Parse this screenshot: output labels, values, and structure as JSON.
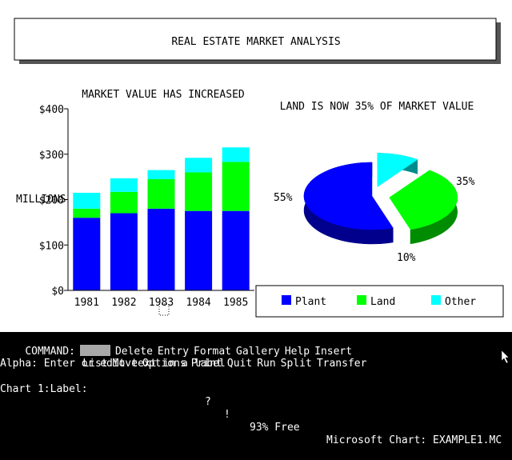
{
  "title_box": {
    "title": "REAL ESTATE MARKET ANALYSIS"
  },
  "chart_data": [
    {
      "type": "bar",
      "title": "MARKET VALUE HAS INCREASED",
      "ylabel": "MILLIONS",
      "categories": [
        "1981",
        "1982",
        "1983",
        "1984",
        "1985"
      ],
      "y_tick_labels": [
        "$0",
        "$100",
        "$200",
        "$300",
        "$400"
      ],
      "ylim": [
        0,
        400
      ],
      "stacked": true,
      "series": [
        {
          "name": "Plant",
          "color": "#0000ff",
          "values": [
            160,
            170,
            180,
            175,
            175
          ]
        },
        {
          "name": "Land",
          "color": "#00ff00",
          "values": [
            20,
            47,
            65,
            85,
            108
          ]
        },
        {
          "name": "Other",
          "color": "#00ffff",
          "values": [
            35,
            30,
            20,
            32,
            32
          ]
        }
      ]
    },
    {
      "type": "pie",
      "title": "LAND IS NOW 35% OF MARKET VALUE",
      "three_d": true,
      "slices": [
        {
          "name": "Plant",
          "color": "#0000ff",
          "value": 55,
          "label": "55%"
        },
        {
          "name": "Land",
          "color": "#00ff00",
          "value": 35,
          "label": "35%",
          "exploded": true
        },
        {
          "name": "Other",
          "color": "#00ffff",
          "value": 10,
          "label": "10%",
          "exploded": true
        }
      ]
    }
  ],
  "legend": {
    "items": [
      {
        "label": "Plant",
        "color": "#0000ff"
      },
      {
        "label": "Land",
        "color": "#00ff00"
      },
      {
        "label": "Other",
        "color": "#00ffff"
      }
    ]
  },
  "menu": {
    "command_label": "COMMAND:",
    "row1": [
      "Delete",
      "Entry",
      "Format",
      "Gallery",
      "Help",
      "Insert"
    ],
    "row2": [
      "List",
      "Move",
      "Options",
      "Print",
      "Quit",
      "Run",
      "Split",
      "Transfer"
    ],
    "prompt": "Alpha: Enter or edit text in a label",
    "status_left": "Chart 1:Label:",
    "status_q": "?",
    "status_excl": "!",
    "status_free": "93% Free",
    "status_app": "Microsoft Chart: EXAMPLE1.MC"
  }
}
